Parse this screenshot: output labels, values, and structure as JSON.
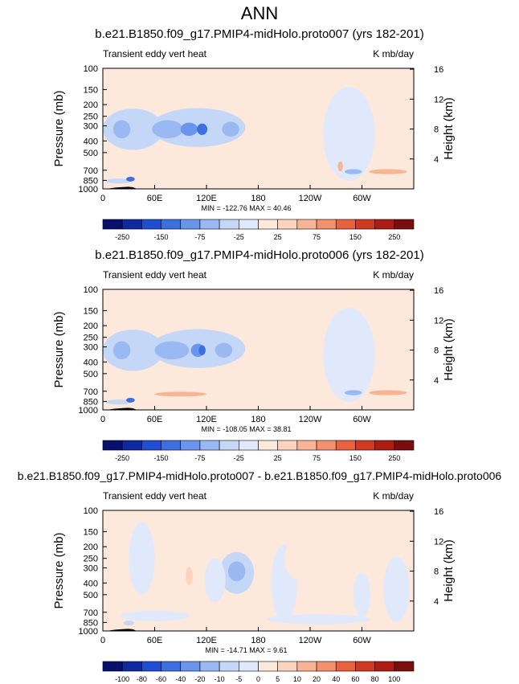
{
  "figure_title": "ANN",
  "chart_data": [
    {
      "type": "heatmap",
      "title": "b.e21.B1850.f09_g17.PMIP4-midHolo.proto007 (yrs 182-201)",
      "left_label": "Transient eddy vert heat",
      "right_label": "K mb/day",
      "ylabel": "Pressure (mb)",
      "ylabel_right": "Height (km)",
      "x_ticks": [
        "0",
        "60E",
        "120E",
        "180",
        "120W",
        "60W"
      ],
      "y_ticks": [
        "100",
        "150",
        "200",
        "250",
        "300",
        "400",
        "500",
        "700",
        "850",
        "1000"
      ],
      "height_ticks": [
        "4",
        "8",
        "12",
        "16"
      ],
      "stats": "MIN = -122.76   MAX =  40.46",
      "colorbar_labels": [
        "-250",
        "-150",
        "-75",
        "-25",
        "25",
        "75",
        "150",
        "250"
      ],
      "blobs": [
        {
          "lon": 35,
          "p": 320,
          "rl": 35,
          "rp": 240,
          "v": -12
        },
        {
          "lon": 110,
          "p": 310,
          "rl": 55,
          "rp": 220,
          "v": -15
        },
        {
          "lon": 22,
          "p": 320,
          "rl": 10,
          "rp": 110,
          "v": -40
        },
        {
          "lon": 75,
          "p": 320,
          "rl": 18,
          "rp": 110,
          "v": -40
        },
        {
          "lon": 100,
          "p": 320,
          "rl": 10,
          "rp": 80,
          "v": -70
        },
        {
          "lon": 115,
          "p": 320,
          "rl": 6,
          "rp": 70,
          "v": -90
        },
        {
          "lon": 148,
          "p": 320,
          "rl": 10,
          "rp": 90,
          "v": -40
        },
        {
          "lon": 278,
          "p": 300,
          "rl": 6,
          "rp": 120,
          "v": -20
        },
        {
          "lon": 285,
          "p": 350,
          "rl": 30,
          "rp": 500,
          "v": -6
        },
        {
          "lon": 18,
          "p": 860,
          "rl": 15,
          "rp": 80,
          "v": -20
        },
        {
          "lon": 32,
          "p": 830,
          "rl": 5,
          "rp": 60,
          "v": -80
        },
        {
          "lon": 290,
          "p": 720,
          "rl": 10,
          "rp": 70,
          "v": -40
        },
        {
          "lon": 330,
          "p": 720,
          "rl": 22,
          "rp": 70,
          "v": 40
        },
        {
          "lon": 275,
          "p": 650,
          "rl": 3,
          "rp": 120,
          "v": 25
        }
      ]
    },
    {
      "type": "heatmap",
      "title": "b.e21.B1850.f09_g17.PMIP4-midHolo.proto006 (yrs 182-201)",
      "left_label": "Transient eddy vert heat",
      "right_label": "K mb/day",
      "ylabel": "Pressure (mb)",
      "ylabel_right": "Height (km)",
      "x_ticks": [
        "0",
        "60E",
        "120E",
        "180",
        "120W",
        "60W"
      ],
      "y_ticks": [
        "100",
        "150",
        "200",
        "250",
        "300",
        "400",
        "500",
        "700",
        "850",
        "1000"
      ],
      "height_ticks": [
        "4",
        "8",
        "12",
        "16"
      ],
      "stats": "MIN = -108.05   MAX =  38.81",
      "colorbar_labels": [
        "-250",
        "-150",
        "-75",
        "-25",
        "25",
        "75",
        "150",
        "250"
      ],
      "blobs": [
        {
          "lon": 35,
          "p": 320,
          "rl": 35,
          "rp": 240,
          "v": -12
        },
        {
          "lon": 110,
          "p": 310,
          "rl": 55,
          "rp": 220,
          "v": -15
        },
        {
          "lon": 22,
          "p": 320,
          "rl": 10,
          "rp": 110,
          "v": -40
        },
        {
          "lon": 80,
          "p": 320,
          "rl": 20,
          "rp": 110,
          "v": -40
        },
        {
          "lon": 110,
          "p": 320,
          "rl": 8,
          "rp": 80,
          "v": -70
        },
        {
          "lon": 115,
          "p": 320,
          "rl": 4,
          "rp": 60,
          "v": -90
        },
        {
          "lon": 140,
          "p": 320,
          "rl": 10,
          "rp": 90,
          "v": -35
        },
        {
          "lon": 278,
          "p": 300,
          "rl": 6,
          "rp": 120,
          "v": -20
        },
        {
          "lon": 285,
          "p": 350,
          "rl": 30,
          "rp": 500,
          "v": -6
        },
        {
          "lon": 18,
          "p": 860,
          "rl": 15,
          "rp": 80,
          "v": -20
        },
        {
          "lon": 32,
          "p": 830,
          "rl": 5,
          "rp": 60,
          "v": -80
        },
        {
          "lon": 290,
          "p": 720,
          "rl": 10,
          "rp": 70,
          "v": -40
        },
        {
          "lon": 330,
          "p": 720,
          "rl": 22,
          "rp": 70,
          "v": 38
        },
        {
          "lon": 90,
          "p": 740,
          "rl": 30,
          "rp": 40,
          "v": 25
        }
      ]
    },
    {
      "type": "heatmap",
      "title": "b.e21.B1850.f09_g17.PMIP4-midHolo.proto007 - b.e21.B1850.f09_g17.PMIP4-midHolo.proto006",
      "left_label": "Transient eddy vert heat",
      "right_label": "K mb/day",
      "ylabel": "Pressure (mb)",
      "ylabel_right": "Height (km)",
      "x_ticks": [
        "0",
        "60E",
        "120E",
        "180",
        "120W",
        "60W"
      ],
      "y_ticks": [
        "100",
        "150",
        "200",
        "250",
        "300",
        "400",
        "500",
        "700",
        "850",
        "1000"
      ],
      "height_ticks": [
        "4",
        "8",
        "12",
        "16"
      ],
      "stats": "MIN = -14.71   MAX =  9.61",
      "colorbar_labels": [
        "-100",
        "-80",
        "-60",
        "-40",
        "-20",
        "-10",
        "-5",
        "0",
        "5",
        "10",
        "20",
        "40",
        "60",
        "80",
        "100"
      ],
      "blobs": [
        {
          "lon": 155,
          "p": 330,
          "rl": 20,
          "rp": 250,
          "v": -8
        },
        {
          "lon": 155,
          "p": 320,
          "rl": 10,
          "rp": 120,
          "v": -14
        },
        {
          "lon": 130,
          "p": 380,
          "rl": 12,
          "rp": 300,
          "v": -5
        },
        {
          "lon": 210,
          "p": 400,
          "rl": 15,
          "rp": 500,
          "v": -3
        },
        {
          "lon": 45,
          "p": 250,
          "rl": 15,
          "rp": 300,
          "v": -3
        },
        {
          "lon": 100,
          "p": 350,
          "rl": 4,
          "rp": 120,
          "v": 7
        },
        {
          "lon": 250,
          "p": 800,
          "rl": 60,
          "rp": 150,
          "v": -2
        },
        {
          "lon": 60,
          "p": 750,
          "rl": 40,
          "rp": 150,
          "v": -2
        },
        {
          "lon": 300,
          "p": 500,
          "rl": 10,
          "rp": 400,
          "v": -4
        },
        {
          "lon": 340,
          "p": 450,
          "rl": 15,
          "rp": 500,
          "v": -3
        },
        {
          "lon": 230,
          "p": 250,
          "rl": 20,
          "rp": 200,
          "v": 3
        },
        {
          "lon": 30,
          "p": 860,
          "rl": 6,
          "rp": 60,
          "v": -10
        }
      ]
    }
  ]
}
